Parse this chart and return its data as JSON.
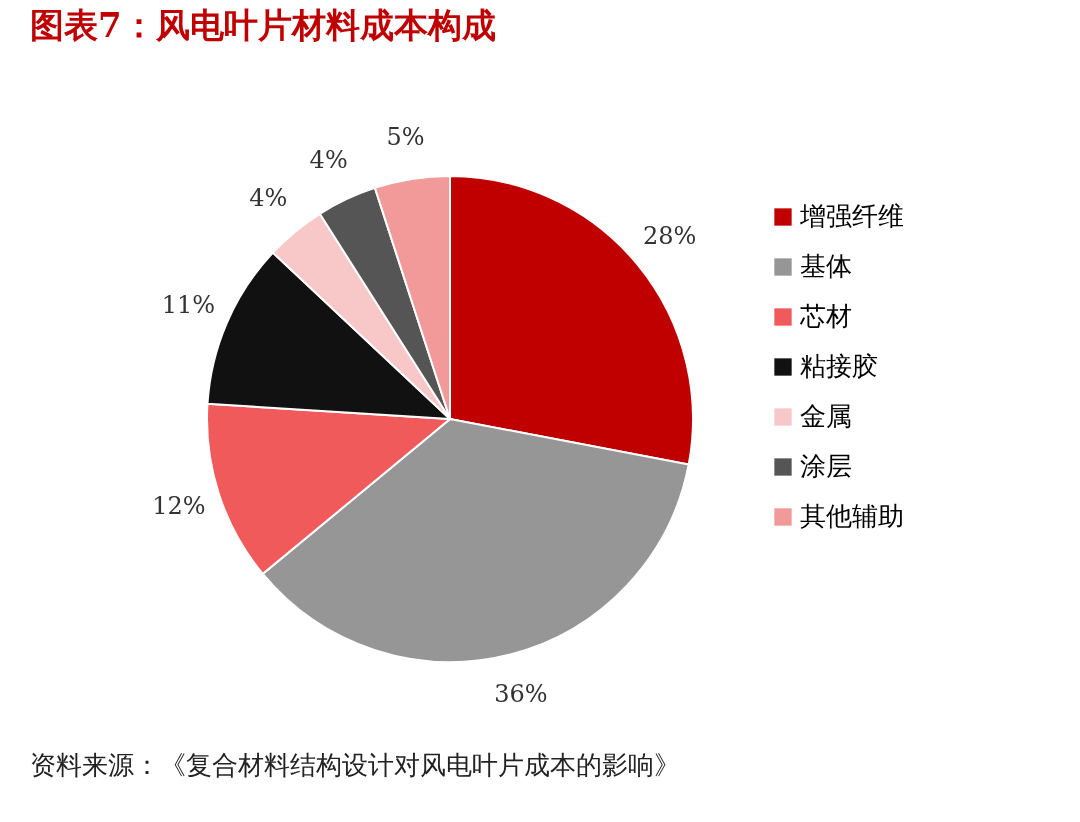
{
  "chart_data": {
    "type": "pie",
    "title": "图表7：风电叶片材料成本构成",
    "categories": [
      "增强纤维",
      "基体",
      "芯材",
      "粘接胶",
      "金属",
      "涂层",
      "其他辅助"
    ],
    "values": [
      28,
      36,
      12,
      11,
      4,
      4,
      5
    ],
    "colors": [
      "#c00000",
      "#969696",
      "#f05a5a",
      "#111111",
      "#f8c8c8",
      "#555555",
      "#f29a9a"
    ],
    "value_labels": [
      "28%",
      "36%",
      "12%",
      "11%",
      "4%",
      "4%",
      "5%"
    ],
    "legend": "right",
    "annotations": [
      "资料来源：《复合材料结构设计对风电叶片成本的影响》"
    ]
  }
}
